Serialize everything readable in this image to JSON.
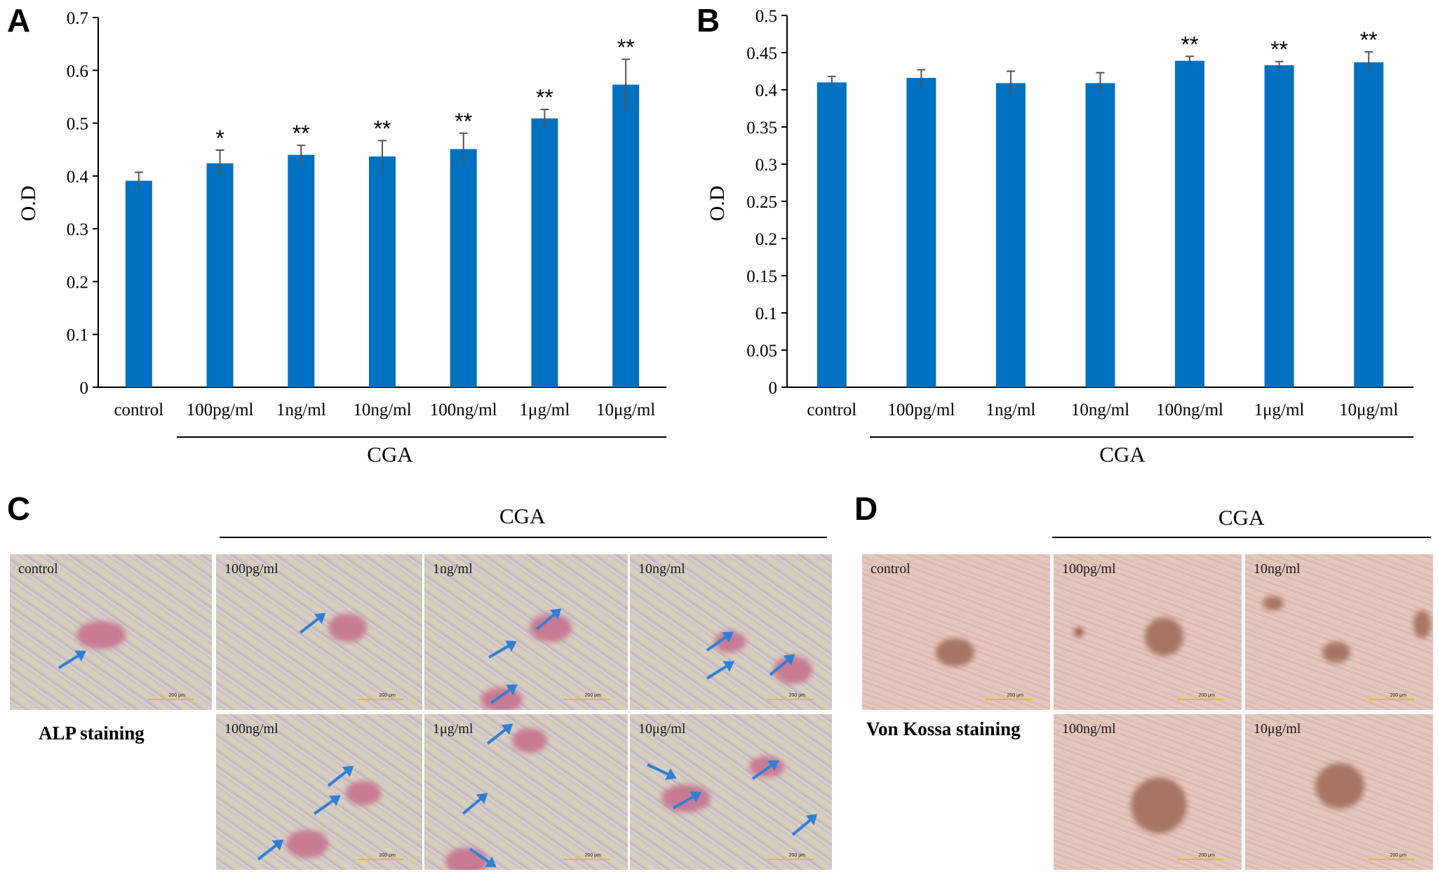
{
  "panels": {
    "A": "A",
    "B": "B",
    "C": "C",
    "D": "D"
  },
  "chart_data": [
    {
      "type": "bar",
      "ylabel": "O.D",
      "group_label": "CGA",
      "categories": [
        "control",
        "100pg/ml",
        "1ng/ml",
        "10ng/ml",
        "100ng/ml",
        "1μg/ml",
        "10μg/ml"
      ],
      "values": [
        0.391,
        0.424,
        0.44,
        0.437,
        0.451,
        0.509,
        0.573
      ],
      "errors": [
        0.016,
        0.025,
        0.018,
        0.03,
        0.03,
        0.017,
        0.048
      ],
      "significance": [
        "",
        "*",
        "**",
        "**",
        "**",
        "**",
        "**"
      ],
      "ylim": [
        0,
        0.7
      ],
      "yticks": [
        "0",
        "0.1",
        "0.2",
        "0.3",
        "0.4",
        "0.5",
        "0.6",
        "0.7"
      ],
      "bar_color": "#0070c0"
    },
    {
      "type": "bar",
      "ylabel": "O.D",
      "group_label": "CGA",
      "categories": [
        "control",
        "100pg/ml",
        "1ng/ml",
        "10ng/ml",
        "100ng/ml",
        "1μg/ml",
        "10μg/ml"
      ],
      "values": [
        0.41,
        0.416,
        0.409,
        0.409,
        0.439,
        0.433,
        0.437
      ],
      "errors": [
        0.008,
        0.011,
        0.016,
        0.014,
        0.006,
        0.005,
        0.014
      ],
      "significance": [
        "",
        "",
        "",
        "",
        "**",
        "**",
        "**"
      ],
      "ylim": [
        0,
        0.5
      ],
      "yticks": [
        "0",
        "0.05",
        "0.1",
        "0.15",
        "0.2",
        "0.25",
        "0.3",
        "0.35",
        "0.4",
        "0.45",
        "0.5"
      ],
      "bar_color": "#0070c0"
    }
  ],
  "alp_panel": {
    "group_label": "CGA",
    "stain_label": "ALP staining",
    "images": [
      "control",
      "100pg/ml",
      "1ng/ml",
      "10ng/ml",
      "100ng/ml",
      "1μg/ml",
      "10μg/ml"
    ],
    "scale_text": "200 μm"
  },
  "vk_panel": {
    "group_label": "CGA",
    "stain_label": "Von Kossa staining",
    "images": [
      "control",
      "100pg/ml",
      "10ng/ml",
      "100ng/ml",
      "10μg/ml"
    ],
    "scale_text": "200 μm"
  }
}
